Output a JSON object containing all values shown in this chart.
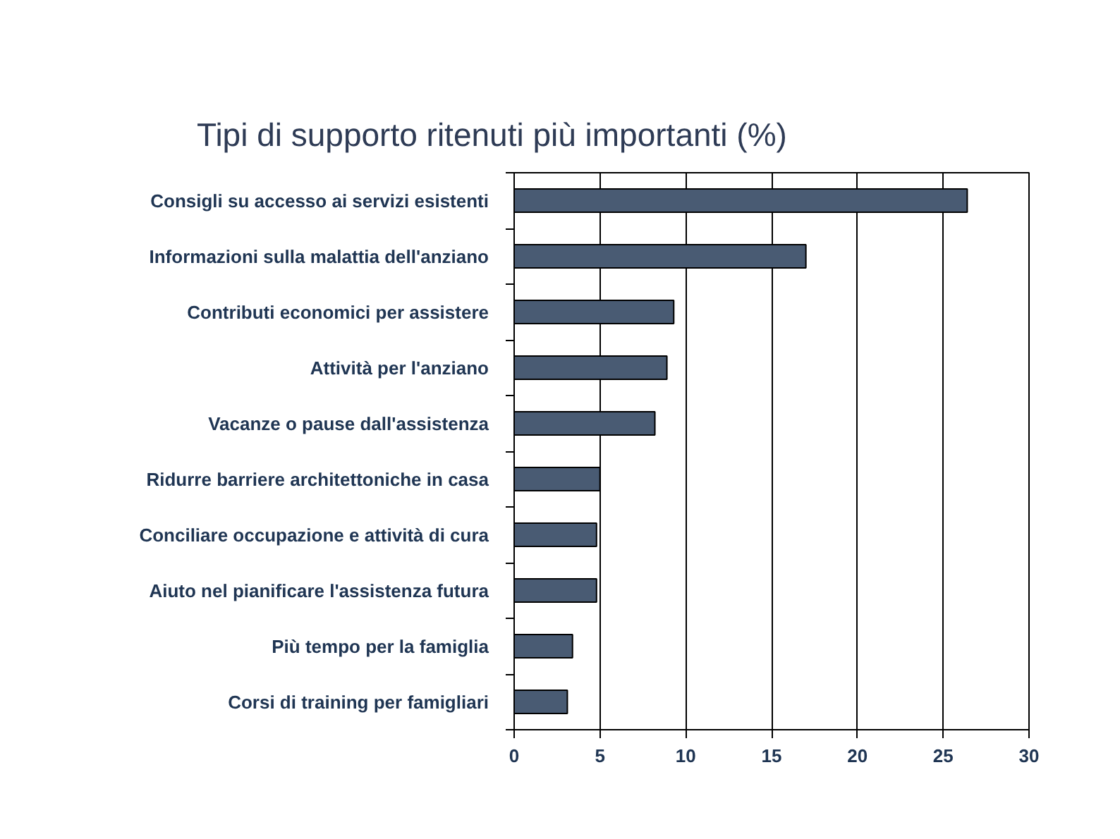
{
  "chart_data": {
    "type": "bar",
    "orientation": "horizontal",
    "title": "Tipi di supporto ritenuti più importanti (%)",
    "categories": [
      "Consigli su accesso ai servizi esistenti",
      "Informazioni sulla malattia dell'anziano",
      "Contributi economici per assistere",
      "Attività per l'anziano",
      "Vacanze o pause dall'assistenza",
      "Ridurre barriere architettoniche in casa",
      "Conciliare occupazione e attività di cura",
      "Aiuto nel pianificare l'assistenza futura",
      "Più tempo per la famiglia",
      "Corsi di training per famigliari"
    ],
    "values": [
      26.4,
      17.0,
      9.3,
      8.9,
      8.2,
      5.0,
      4.8,
      4.8,
      3.4,
      3.1
    ],
    "color": "#495b73",
    "xlim": [
      0,
      30
    ],
    "xticks": [
      0,
      5,
      10,
      15,
      20,
      25,
      30
    ],
    "grid": "x"
  }
}
